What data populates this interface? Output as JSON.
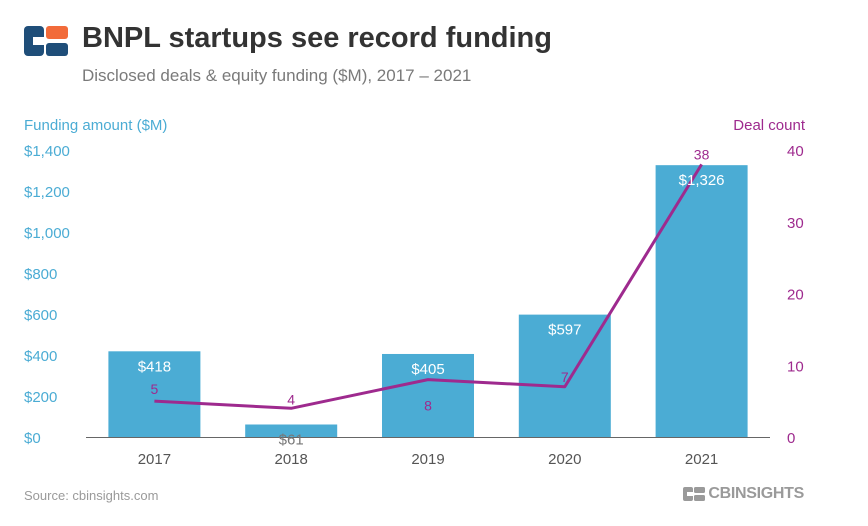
{
  "header": {
    "title": "BNPL startups see record funding",
    "subtitle": "Disclosed deals & equity funding ($M), 2017 – 2021"
  },
  "footer": {
    "source": "Source: cbinsights.com",
    "brand": "CBINSIGHTS"
  },
  "colors": {
    "bar": "#4BACD4",
    "line": "#9E2A8E",
    "left_axis_text": "#4BACD4",
    "right_axis_text": "#9E2A8E",
    "logo_blue": "#1F4E79",
    "logo_orange": "#F26B3A"
  },
  "chart_data": {
    "type": "bar",
    "categories": [
      "2017",
      "2018",
      "2019",
      "2020",
      "2021"
    ],
    "series": [
      {
        "name": "Funding amount ($M)",
        "type": "bar",
        "axis": "left",
        "values": [
          418,
          61,
          405,
          597,
          1326
        ],
        "labels": [
          "$418",
          "$61",
          "$405",
          "$597",
          "$1,326"
        ]
      },
      {
        "name": "Deal count",
        "type": "line",
        "axis": "right",
        "values": [
          5,
          4,
          8,
          7,
          38
        ],
        "labels": [
          "5",
          "4",
          "8",
          "7",
          "38"
        ]
      }
    ],
    "left_axis": {
      "label": "Funding amount ($M)",
      "ylim": [
        0,
        1400
      ],
      "ticks": [
        "$0",
        "$200",
        "$400",
        "$600",
        "$800",
        "$1,000",
        "$1,200",
        "$1,400"
      ]
    },
    "right_axis": {
      "label": "Deal count",
      "ylim": [
        0,
        40
      ],
      "ticks": [
        "0",
        "10",
        "20",
        "30",
        "40"
      ]
    },
    "grid": false
  }
}
